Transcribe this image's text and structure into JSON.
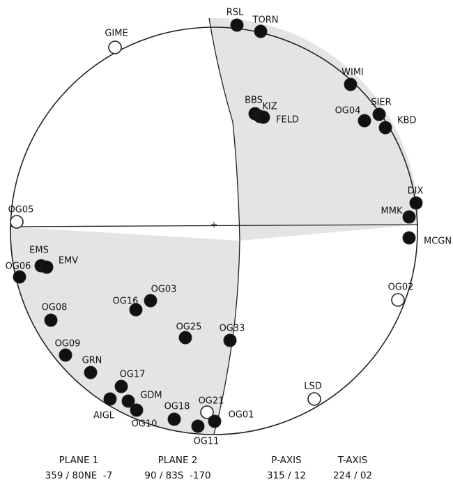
{
  "stations": [
    {
      "id": "RSL",
      "polarity": "compression"
    },
    {
      "id": "TORN",
      "polarity": "compression"
    },
    {
      "id": "GIME",
      "polarity": "dilatation"
    },
    {
      "id": "WIMI",
      "polarity": "compression"
    },
    {
      "id": "BBS",
      "polarity": "compression"
    },
    {
      "id": "KIZ",
      "polarity": "compression"
    },
    {
      "id": "FELD",
      "polarity": "compression"
    },
    {
      "id": "OG04",
      "polarity": "compression"
    },
    {
      "id": "SIER",
      "polarity": "compression"
    },
    {
      "id": "KBD",
      "polarity": "compression"
    },
    {
      "id": "DIX",
      "polarity": "compression"
    },
    {
      "id": "MMK",
      "polarity": "compression"
    },
    {
      "id": "MCGN",
      "polarity": "compression"
    },
    {
      "id": "OG05",
      "polarity": "dilatation"
    },
    {
      "id": "EMS",
      "polarity": "compression"
    },
    {
      "id": "EMV",
      "polarity": "compression"
    },
    {
      "id": "OG06",
      "polarity": "compression"
    },
    {
      "id": "OG02",
      "polarity": "dilatation"
    },
    {
      "id": "OG03",
      "polarity": "compression"
    },
    {
      "id": "OG16",
      "polarity": "compression"
    },
    {
      "id": "OG08",
      "polarity": "compression"
    },
    {
      "id": "OG25",
      "polarity": "compression"
    },
    {
      "id": "OG33",
      "polarity": "compression"
    },
    {
      "id": "OG09",
      "polarity": "compression"
    },
    {
      "id": "GRN",
      "polarity": "compression"
    },
    {
      "id": "OG17",
      "polarity": "compression"
    },
    {
      "id": "GDM",
      "polarity": "compression"
    },
    {
      "id": "AIGL",
      "polarity": "compression"
    },
    {
      "id": "LSD",
      "polarity": "dilatation"
    },
    {
      "id": "OG18",
      "polarity": "compression"
    },
    {
      "id": "OG21",
      "polarity": "dilatation"
    },
    {
      "id": "OG10",
      "polarity": "compression"
    },
    {
      "id": "OG01",
      "polarity": "compression"
    },
    {
      "id": "OG11",
      "polarity": "compression"
    }
  ],
  "captions": [
    {
      "id": "plane1",
      "heading": "PLANE 1",
      "value": "359 / 80NE  -7"
    },
    {
      "id": "plane2",
      "heading": "PLANE 2",
      "value": "90 / 83S  -170"
    },
    {
      "id": "paxis",
      "heading": "P-AXIS",
      "value": "315 / 12"
    },
    {
      "id": "taxis",
      "heading": "T-AXIS",
      "value": "224 / 02"
    }
  ],
  "colors": {
    "compression": "#111111",
    "dilatation": "#ffffff",
    "shade": "#e4e4e4",
    "outline": "#222222"
  }
}
